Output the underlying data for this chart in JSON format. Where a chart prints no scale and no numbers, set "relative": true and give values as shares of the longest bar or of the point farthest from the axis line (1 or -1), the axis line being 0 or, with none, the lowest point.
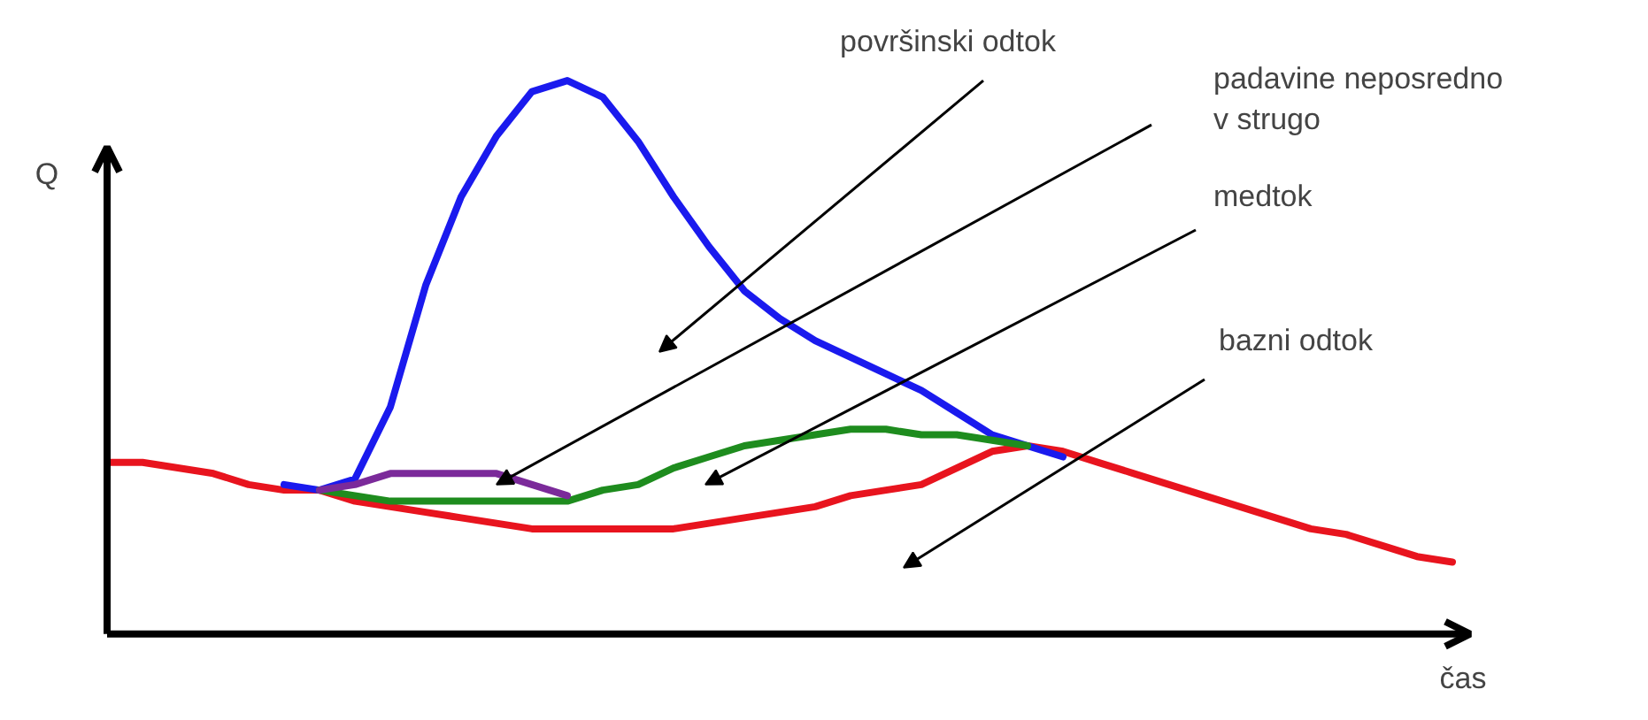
{
  "chart_data": {
    "type": "line",
    "relative": true,
    "xlabel": "čas",
    "ylabel": "Q",
    "categories": [
      null,
      null,
      null,
      null,
      null,
      null,
      null,
      null,
      null,
      null,
      null,
      null,
      null,
      null,
      null,
      null,
      null,
      null,
      null,
      null,
      null,
      null,
      null,
      null,
      null,
      null,
      null,
      null,
      null,
      null,
      null,
      null,
      null,
      null,
      null,
      null,
      null,
      null,
      null
    ],
    "series": [
      {
        "color": "#e8141e",
        "values": [
          0.31,
          0.31,
          0.3,
          0.29,
          0.27,
          0.26,
          0.26,
          0.24,
          0.23,
          0.22,
          0.21,
          0.2,
          0.19,
          0.19,
          0.19,
          0.19,
          0.19,
          0.2,
          0.21,
          0.22,
          0.23,
          0.25,
          0.26,
          0.27,
          0.3,
          0.33,
          0.34,
          0.33,
          0.31,
          0.29,
          0.27,
          0.25,
          0.23,
          0.21,
          0.19,
          0.18,
          0.16,
          0.14,
          0.13
        ]
      },
      {
        "color": "#1a1aee",
        "values": [
          null,
          null,
          null,
          null,
          null,
          0.27,
          0.26,
          0.28,
          0.41,
          0.63,
          0.79,
          0.9,
          0.98,
          1.0,
          0.97,
          0.89,
          0.79,
          0.7,
          0.62,
          0.57,
          0.53,
          0.5,
          0.47,
          0.44,
          0.4,
          0.36,
          0.34,
          0.32,
          null,
          null,
          null,
          null,
          null,
          null,
          null,
          null,
          null,
          null,
          null
        ]
      },
      {
        "color": "#1e8c1e",
        "values": [
          null,
          null,
          null,
          null,
          null,
          null,
          0.26,
          0.25,
          0.24,
          0.24,
          0.24,
          0.24,
          0.24,
          0.24,
          0.26,
          0.27,
          0.3,
          0.32,
          0.34,
          0.35,
          0.36,
          0.37,
          0.37,
          0.36,
          0.36,
          0.35,
          0.34,
          null,
          null,
          null,
          null,
          null,
          null,
          null,
          null,
          null,
          null,
          null,
          null
        ]
      },
      {
        "color": "#7b2a9a",
        "values": [
          null,
          null,
          null,
          null,
          null,
          null,
          0.26,
          0.27,
          0.29,
          0.29,
          0.29,
          0.29,
          0.27,
          0.25,
          null,
          null,
          null,
          null,
          null,
          null,
          null,
          null,
          null,
          null,
          null,
          null,
          null,
          null,
          null,
          null,
          null,
          null,
          null,
          null,
          null,
          null,
          null,
          null,
          null
        ]
      }
    ],
    "annotations": [
      "površinski odtok",
      "padavine neposredno\nv strugo",
      "medtok",
      "bazni odtok"
    ]
  }
}
